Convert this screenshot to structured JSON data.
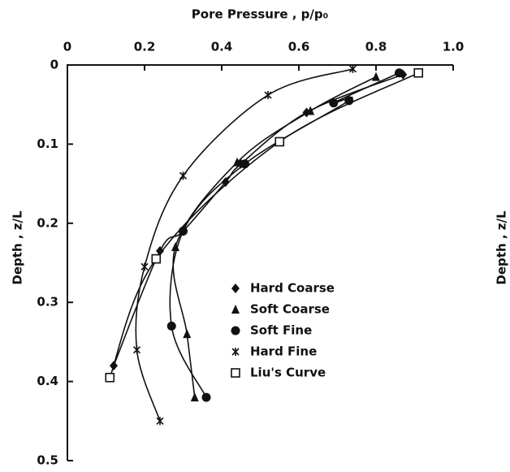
{
  "chart_data": {
    "type": "scatter",
    "title": "Pore Pressure , p/p₀",
    "y_label": "Depth , z/L",
    "y_label_right": "Depth , z/L",
    "xlim": [
      0,
      1
    ],
    "ylim": [
      0,
      0.5
    ],
    "xticks": [
      0,
      0.2,
      0.4,
      0.6,
      0.8,
      {
        "value": 1,
        "label": "1.0"
      }
    ],
    "yticks": [
      0,
      0.1,
      0.2,
      0.3,
      0.4,
      0.5
    ],
    "y_inverted": true,
    "series": [
      {
        "name": "Hard Coarse",
        "color": "#111111",
        "marker": "diamond",
        "x": [
          0.87,
          0.62,
          0.45,
          0.41,
          0.3,
          0.24,
          0.12
        ],
        "values": [
          0.012,
          0.06,
          0.125,
          0.148,
          0.21,
          0.235,
          0.38
        ]
      },
      {
        "name": "Soft Coarse",
        "color": "#111111",
        "marker": "triangle",
        "x": [
          0.8,
          0.63,
          0.44,
          0.28,
          0.31,
          0.33
        ],
        "values": [
          0.015,
          0.058,
          0.123,
          0.23,
          0.34,
          0.42
        ]
      },
      {
        "name": "Soft Fine",
        "color": "#111111",
        "marker": "circle",
        "x": [
          0.86,
          0.69,
          0.73,
          0.46,
          0.3,
          0.27,
          0.36
        ],
        "values": [
          0.01,
          0.048,
          0.045,
          0.125,
          0.21,
          0.33,
          0.42
        ]
      },
      {
        "name": "Hard Fine",
        "color": "#111111",
        "marker": "asterisk",
        "x": [
          0.74,
          0.52,
          0.3,
          0.2,
          0.18,
          0.24
        ],
        "values": [
          0.005,
          0.038,
          0.14,
          0.255,
          0.36,
          0.45
        ]
      },
      {
        "name": "Liu's Curve",
        "color": "#111111",
        "marker": "square",
        "x": [
          0.91,
          0.55,
          0.23,
          0.11
        ],
        "values": [
          0.01,
          0.097,
          0.245,
          0.395
        ]
      }
    ]
  }
}
